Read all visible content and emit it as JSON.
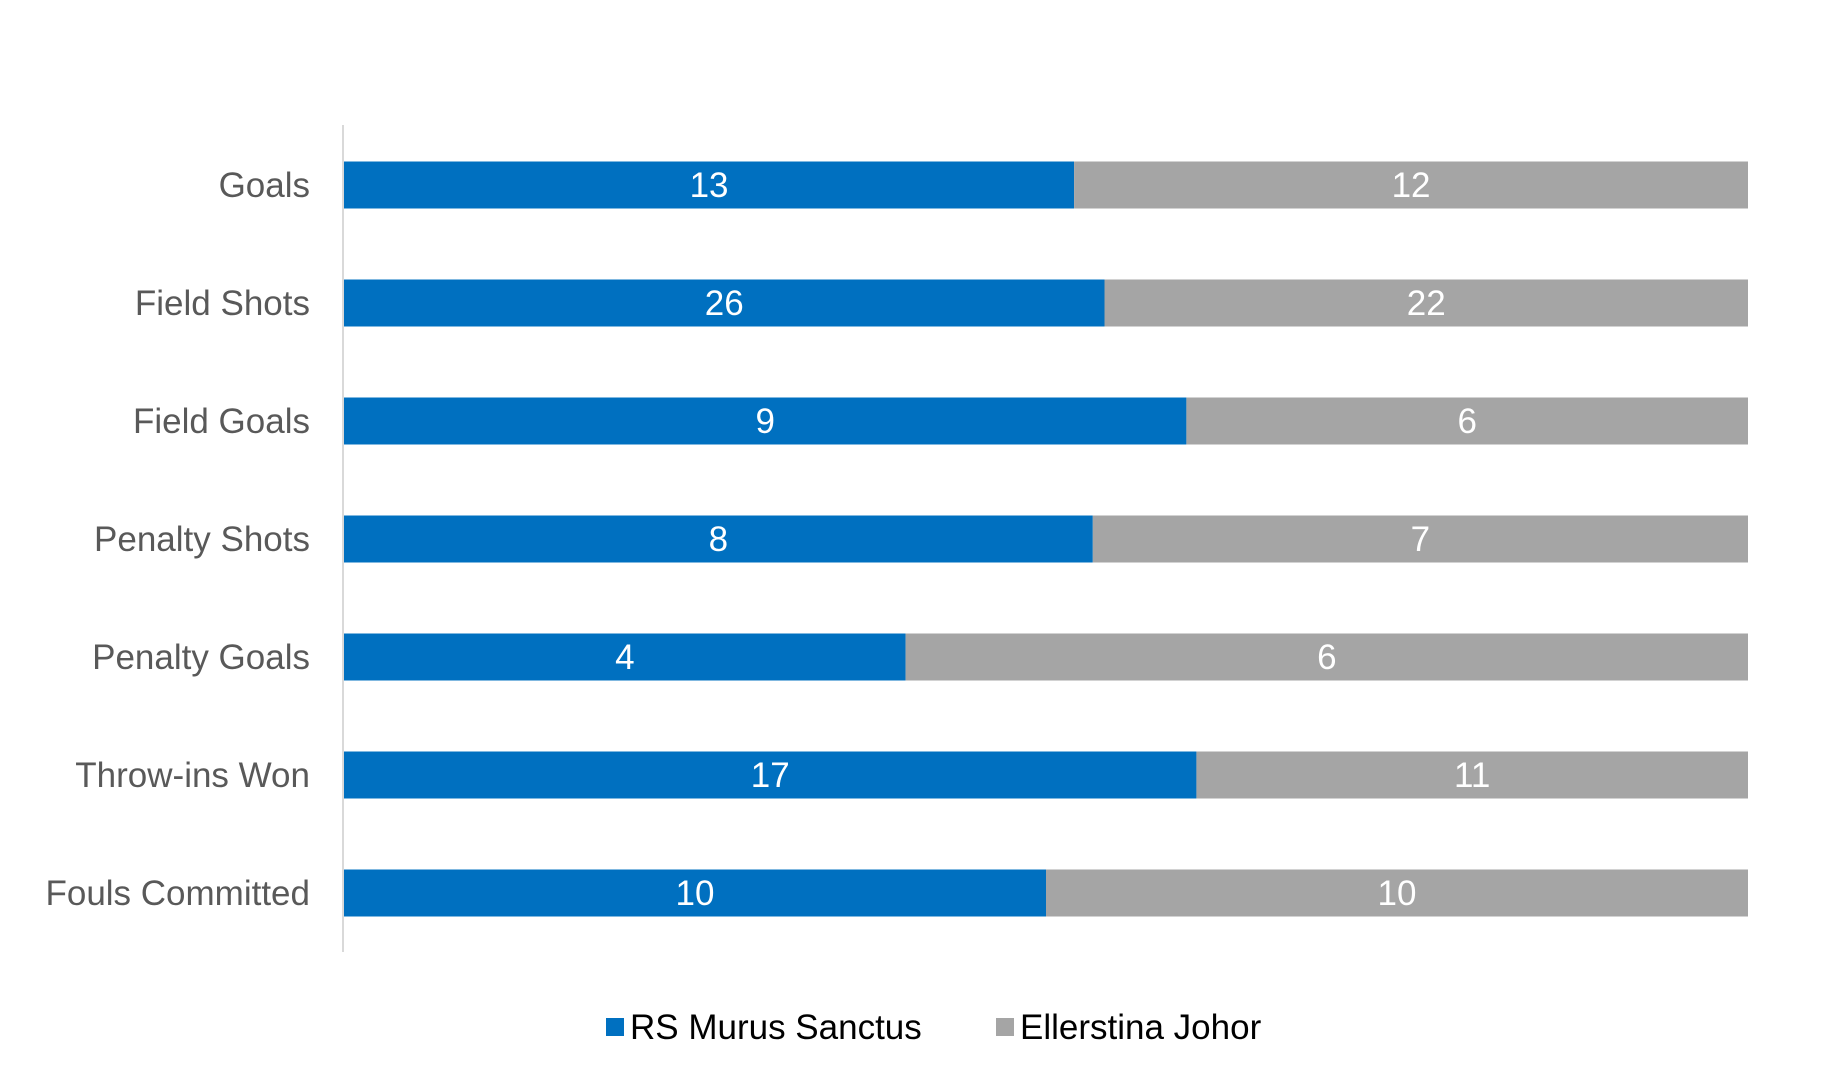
{
  "chart_data": {
    "type": "bar",
    "orientation": "horizontal",
    "stacked": "100%",
    "categories": [
      "Goals",
      "Field Shots",
      "Field Goals",
      "Penalty Shots",
      "Penalty Goals",
      "Throw-ins Won",
      "Fouls Committed"
    ],
    "series": [
      {
        "name": "RS Murus Sanctus",
        "color": "#0070C0",
        "values": [
          13,
          26,
          9,
          8,
          4,
          17,
          10
        ]
      },
      {
        "name": "Ellerstina Johor",
        "color": "#A5A5A5",
        "values": [
          12,
          22,
          6,
          7,
          6,
          11,
          10
        ]
      }
    ],
    "title": "",
    "xlabel": "",
    "ylabel": "",
    "grid": false,
    "legend_position": "bottom",
    "data_labels": true
  }
}
